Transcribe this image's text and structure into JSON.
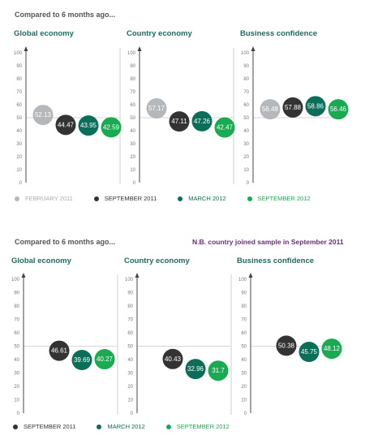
{
  "colors": {
    "feb2011": "#b5b8ba",
    "sep2011": "#333333",
    "mar2012": "#0b6e58",
    "sep2012": "#1aaa52",
    "title": "#1f6b61",
    "note": "#6b2d7a"
  },
  "chart_data": [
    {
      "type": "scatter",
      "heading": "Compared to 6 months ago...",
      "note": "",
      "y_ticks": [
        "100",
        "90",
        "80",
        "70",
        "60",
        "50",
        "40",
        "30",
        "20",
        "10",
        "0"
      ],
      "ylim": [
        0,
        100
      ],
      "reference_line": 50,
      "legend": [
        {
          "label": "FEBRUARY 2011",
          "color_key": "feb2011"
        },
        {
          "label": "SEPTEMBER 2011",
          "color_key": "sep2011"
        },
        {
          "label": "MARCH 2012",
          "color_key": "mar2012"
        },
        {
          "label": "SEPTEMBER 2012",
          "color_key": "sep2012"
        }
      ],
      "panels": [
        {
          "title": "Global economy",
          "points": [
            {
              "label": "52.13",
              "value": 52.13,
              "color_key": "feb2011"
            },
            {
              "label": "44.47",
              "value": 44.47,
              "color_key": "sep2011"
            },
            {
              "label": "43.95",
              "value": 43.95,
              "color_key": "mar2012"
            },
            {
              "label": "42.59",
              "value": 42.59,
              "color_key": "sep2012"
            }
          ]
        },
        {
          "title": "Country economy",
          "points": [
            {
              "label": "57.17",
              "value": 57.17,
              "color_key": "feb2011"
            },
            {
              "label": "47.11",
              "value": 47.11,
              "color_key": "sep2011"
            },
            {
              "label": "47.26",
              "value": 47.26,
              "color_key": "mar2012"
            },
            {
              "label": "42.47",
              "value": 42.47,
              "color_key": "sep2012"
            }
          ]
        },
        {
          "title": "Business confidence",
          "points": [
            {
              "label": "56.48",
              "value": 56.48,
              "color_key": "feb2011"
            },
            {
              "label": "57.88",
              "value": 57.88,
              "color_key": "sep2011"
            },
            {
              "label": "58.86",
              "value": 58.86,
              "color_key": "mar2012"
            },
            {
              "label": "56.46",
              "value": 56.46,
              "color_key": "sep2012"
            }
          ]
        }
      ]
    },
    {
      "type": "scatter",
      "heading": "Compared to 6 months ago...",
      "note": "N.B. country joined sample in September 2011",
      "y_ticks": [
        "100",
        "90",
        "80",
        "70",
        "60",
        "50",
        "40",
        "30",
        "20",
        "10",
        "0"
      ],
      "ylim": [
        0,
        100
      ],
      "reference_line": 50,
      "legend": [
        {
          "label": "SEPTEMBER 2011",
          "color_key": "sep2011"
        },
        {
          "label": "MARCH 2012",
          "color_key": "mar2012"
        },
        {
          "label": "SEPTEMBER 2012",
          "color_key": "sep2012"
        }
      ],
      "panels": [
        {
          "title": "Global economy",
          "points": [
            {
              "label": "46.61",
              "value": 46.61,
              "color_key": "sep2011"
            },
            {
              "label": "39.69",
              "value": 39.69,
              "color_key": "mar2012"
            },
            {
              "label": "40.27",
              "value": 40.27,
              "color_key": "sep2012"
            }
          ]
        },
        {
          "title": "Country economy",
          "points": [
            {
              "label": "40.43",
              "value": 40.43,
              "color_key": "sep2011"
            },
            {
              "label": "32.96",
              "value": 32.96,
              "color_key": "mar2012"
            },
            {
              "label": "31.7",
              "value": 31.7,
              "color_key": "sep2012"
            }
          ]
        },
        {
          "title": "Business confidence",
          "points": [
            {
              "label": "50.38",
              "value": 50.38,
              "color_key": "sep2011"
            },
            {
              "label": "45.75",
              "value": 45.75,
              "color_key": "mar2012"
            },
            {
              "label": "48.12",
              "value": 48.12,
              "color_key": "sep2012"
            }
          ]
        }
      ]
    }
  ]
}
